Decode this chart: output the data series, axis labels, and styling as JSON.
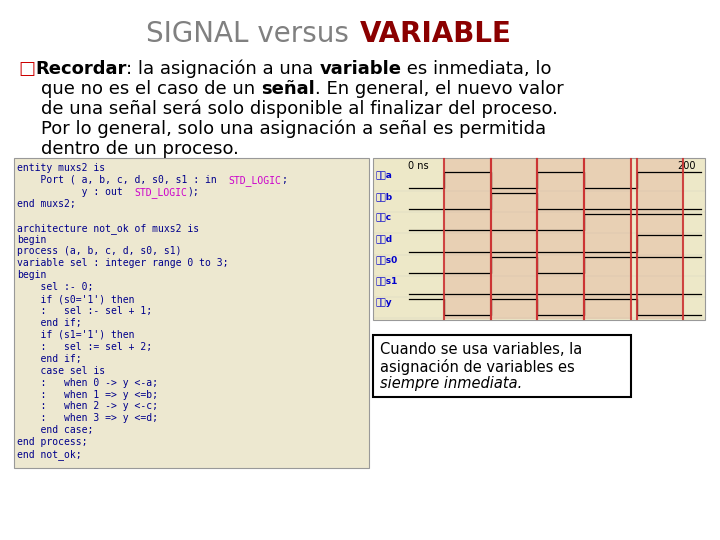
{
  "title_normal": "SIGNAL versus ",
  "title_bold": "VARIABLE",
  "title_normal_color": "#808080",
  "title_bold_color": "#8B0000",
  "bg_color": "#FFFFFF",
  "code_bg": "#EDE8D0",
  "waveform_bg": "#EDE8C8",
  "code_color": "#00008B",
  "code_magenta": "#CC00CC",
  "red_color": "#CC3333",
  "waveform_label_color": "#0000CC",
  "annotation_text_line1": "Cuando se usa variables, la",
  "annotation_text_line2": "asignación de variables es",
  "annotation_text_line3": "siempre inmediata.",
  "waveform_labels": [
    "a",
    "b",
    "c",
    "d",
    "s0",
    "s1",
    "y"
  ],
  "code_lines": [
    "entity muxs2 is",
    "    Port ( a, b, c, d, s0, s1 : in  STD_LOGIC;",
    "           y : out  STD_LOGIC);",
    "end muxs2;",
    "",
    "architecture not_ok of muxs2 is",
    "begin",
    "process (a, b, c, d, s0, s1)",
    "variable sel : integer range 0 to 3;",
    "begin",
    "    sel :- 0;",
    "    if (s0='1') then",
    "    :   sel :- sel + 1;",
    "    end if;",
    "    if (s1='1') then",
    "    :   sel := sel + 2;",
    "    end if;",
    "    case sel is",
    "    :   when 0 -> y <-a;",
    "    :   when 1 => y <=b;",
    "    :   when 2 -> y <-c;",
    "    :   when 3 => y <=d;",
    "    end case;",
    "end process;",
    "end not_ok;"
  ]
}
